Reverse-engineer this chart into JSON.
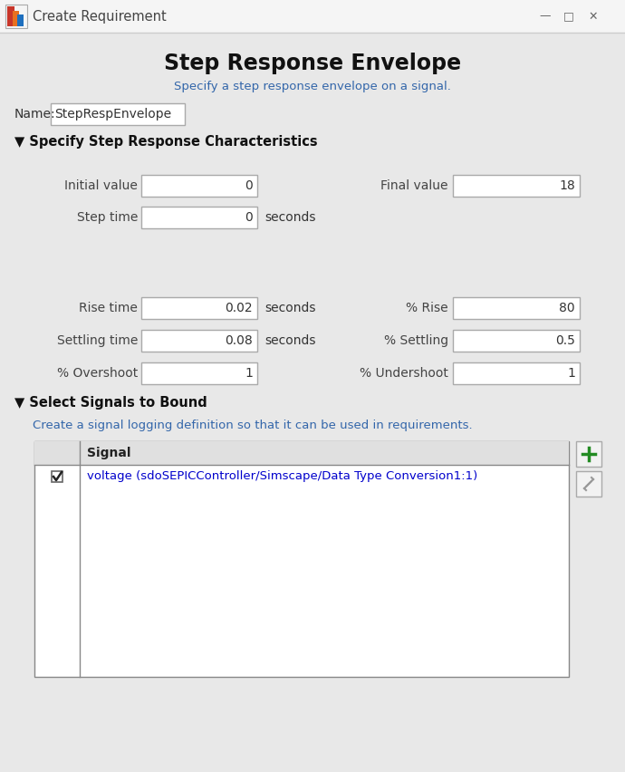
{
  "title_bar_text": "Create Requirement",
  "title": "Step Response Envelope",
  "subtitle": "Specify a step response envelope on a signal.",
  "subtitle_color": "#3366AA",
  "name_label": "Name:",
  "name_value": "StepRespEnvelope",
  "section1_title": "▼ Specify Step Response Characteristics",
  "section2_title": "▼ Select Signals to Bound",
  "section2_subtitle": "Create a signal logging definition so that it can be used in requirements.",
  "section2_subtitle_color": "#3366AA",
  "table_header": "Signal",
  "signal_value": "voltage (sdoSEPICController/Simscape/Data Type Conversion1:1)",
  "bg_color": "#EAEAEA",
  "titlebar_bg": "#F5F5F5",
  "content_bg": "#E8E8E8",
  "white": "#FFFFFF",
  "box_border": "#AAAAAA",
  "label_color": "#444444",
  "section_header_color": "#111111",
  "title_color": "#111111",
  "signal_color": "#0000CC",
  "check_color": "#222222",
  "plus_color": "#228B22",
  "pencil_color": "#999999",
  "units_color": "#333333"
}
